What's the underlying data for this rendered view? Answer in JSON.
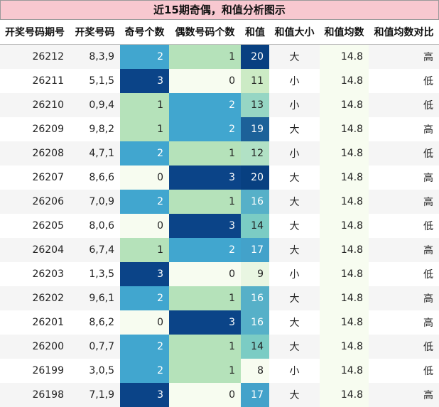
{
  "title": "近15期奇偶，和值分析图示",
  "headers": [
    "开奖号码期号",
    "开奖号码",
    "奇号个数",
    "偶数号码个数",
    "和值",
    "和值大小",
    "和值均数",
    "和值均数对比"
  ],
  "rows": [
    {
      "issue": "26212",
      "numbers": "8,3,9",
      "odd": 2,
      "even": 1,
      "sum": 20,
      "size": "大",
      "avg": "14.8",
      "compare": "高"
    },
    {
      "issue": "26211",
      "numbers": "5,1,5",
      "odd": 3,
      "even": 0,
      "sum": 11,
      "size": "小",
      "avg": "14.8",
      "compare": "低"
    },
    {
      "issue": "26210",
      "numbers": "0,9,4",
      "odd": 1,
      "even": 2,
      "sum": 13,
      "size": "小",
      "avg": "14.8",
      "compare": "低"
    },
    {
      "issue": "26209",
      "numbers": "9,8,2",
      "odd": 1,
      "even": 2,
      "sum": 19,
      "size": "大",
      "avg": "14.8",
      "compare": "高"
    },
    {
      "issue": "26208",
      "numbers": "4,7,1",
      "odd": 2,
      "even": 1,
      "sum": 12,
      "size": "小",
      "avg": "14.8",
      "compare": "低"
    },
    {
      "issue": "26207",
      "numbers": "8,6,6",
      "odd": 0,
      "even": 3,
      "sum": 20,
      "size": "大",
      "avg": "14.8",
      "compare": "高"
    },
    {
      "issue": "26206",
      "numbers": "7,0,9",
      "odd": 2,
      "even": 1,
      "sum": 16,
      "size": "大",
      "avg": "14.8",
      "compare": "高"
    },
    {
      "issue": "26205",
      "numbers": "8,0,6",
      "odd": 0,
      "even": 3,
      "sum": 14,
      "size": "大",
      "avg": "14.8",
      "compare": "低"
    },
    {
      "issue": "26204",
      "numbers": "6,7,4",
      "odd": 1,
      "even": 2,
      "sum": 17,
      "size": "大",
      "avg": "14.8",
      "compare": "高"
    },
    {
      "issue": "26203",
      "numbers": "1,3,5",
      "odd": 3,
      "even": 0,
      "sum": 9,
      "size": "小",
      "avg": "14.8",
      "compare": "低"
    },
    {
      "issue": "26202",
      "numbers": "9,6,1",
      "odd": 2,
      "even": 1,
      "sum": 16,
      "size": "大",
      "avg": "14.8",
      "compare": "高"
    },
    {
      "issue": "26201",
      "numbers": "8,6,2",
      "odd": 0,
      "even": 3,
      "sum": 16,
      "size": "大",
      "avg": "14.8",
      "compare": "高"
    },
    {
      "issue": "26200",
      "numbers": "0,7,7",
      "odd": 2,
      "even": 1,
      "sum": 14,
      "size": "大",
      "avg": "14.8",
      "compare": "低"
    },
    {
      "issue": "26199",
      "numbers": "3,0,5",
      "odd": 2,
      "even": 1,
      "sum": 8,
      "size": "小",
      "avg": "14.8",
      "compare": "低"
    },
    {
      "issue": "26198",
      "numbers": "7,1,9",
      "odd": 3,
      "even": 0,
      "sum": 17,
      "size": "大",
      "avg": "14.8",
      "compare": "高"
    }
  ],
  "colors": {
    "title_bg": "#f8c8d0",
    "count_0": "#f7fcf0",
    "count_1": "#b5e2ba",
    "count_2": "#41a6cf",
    "count_3": "#0b4488",
    "sum_low": "#f7fcf0",
    "sum_high": "#0b4488",
    "avg_bg": "#f7fcf0"
  }
}
